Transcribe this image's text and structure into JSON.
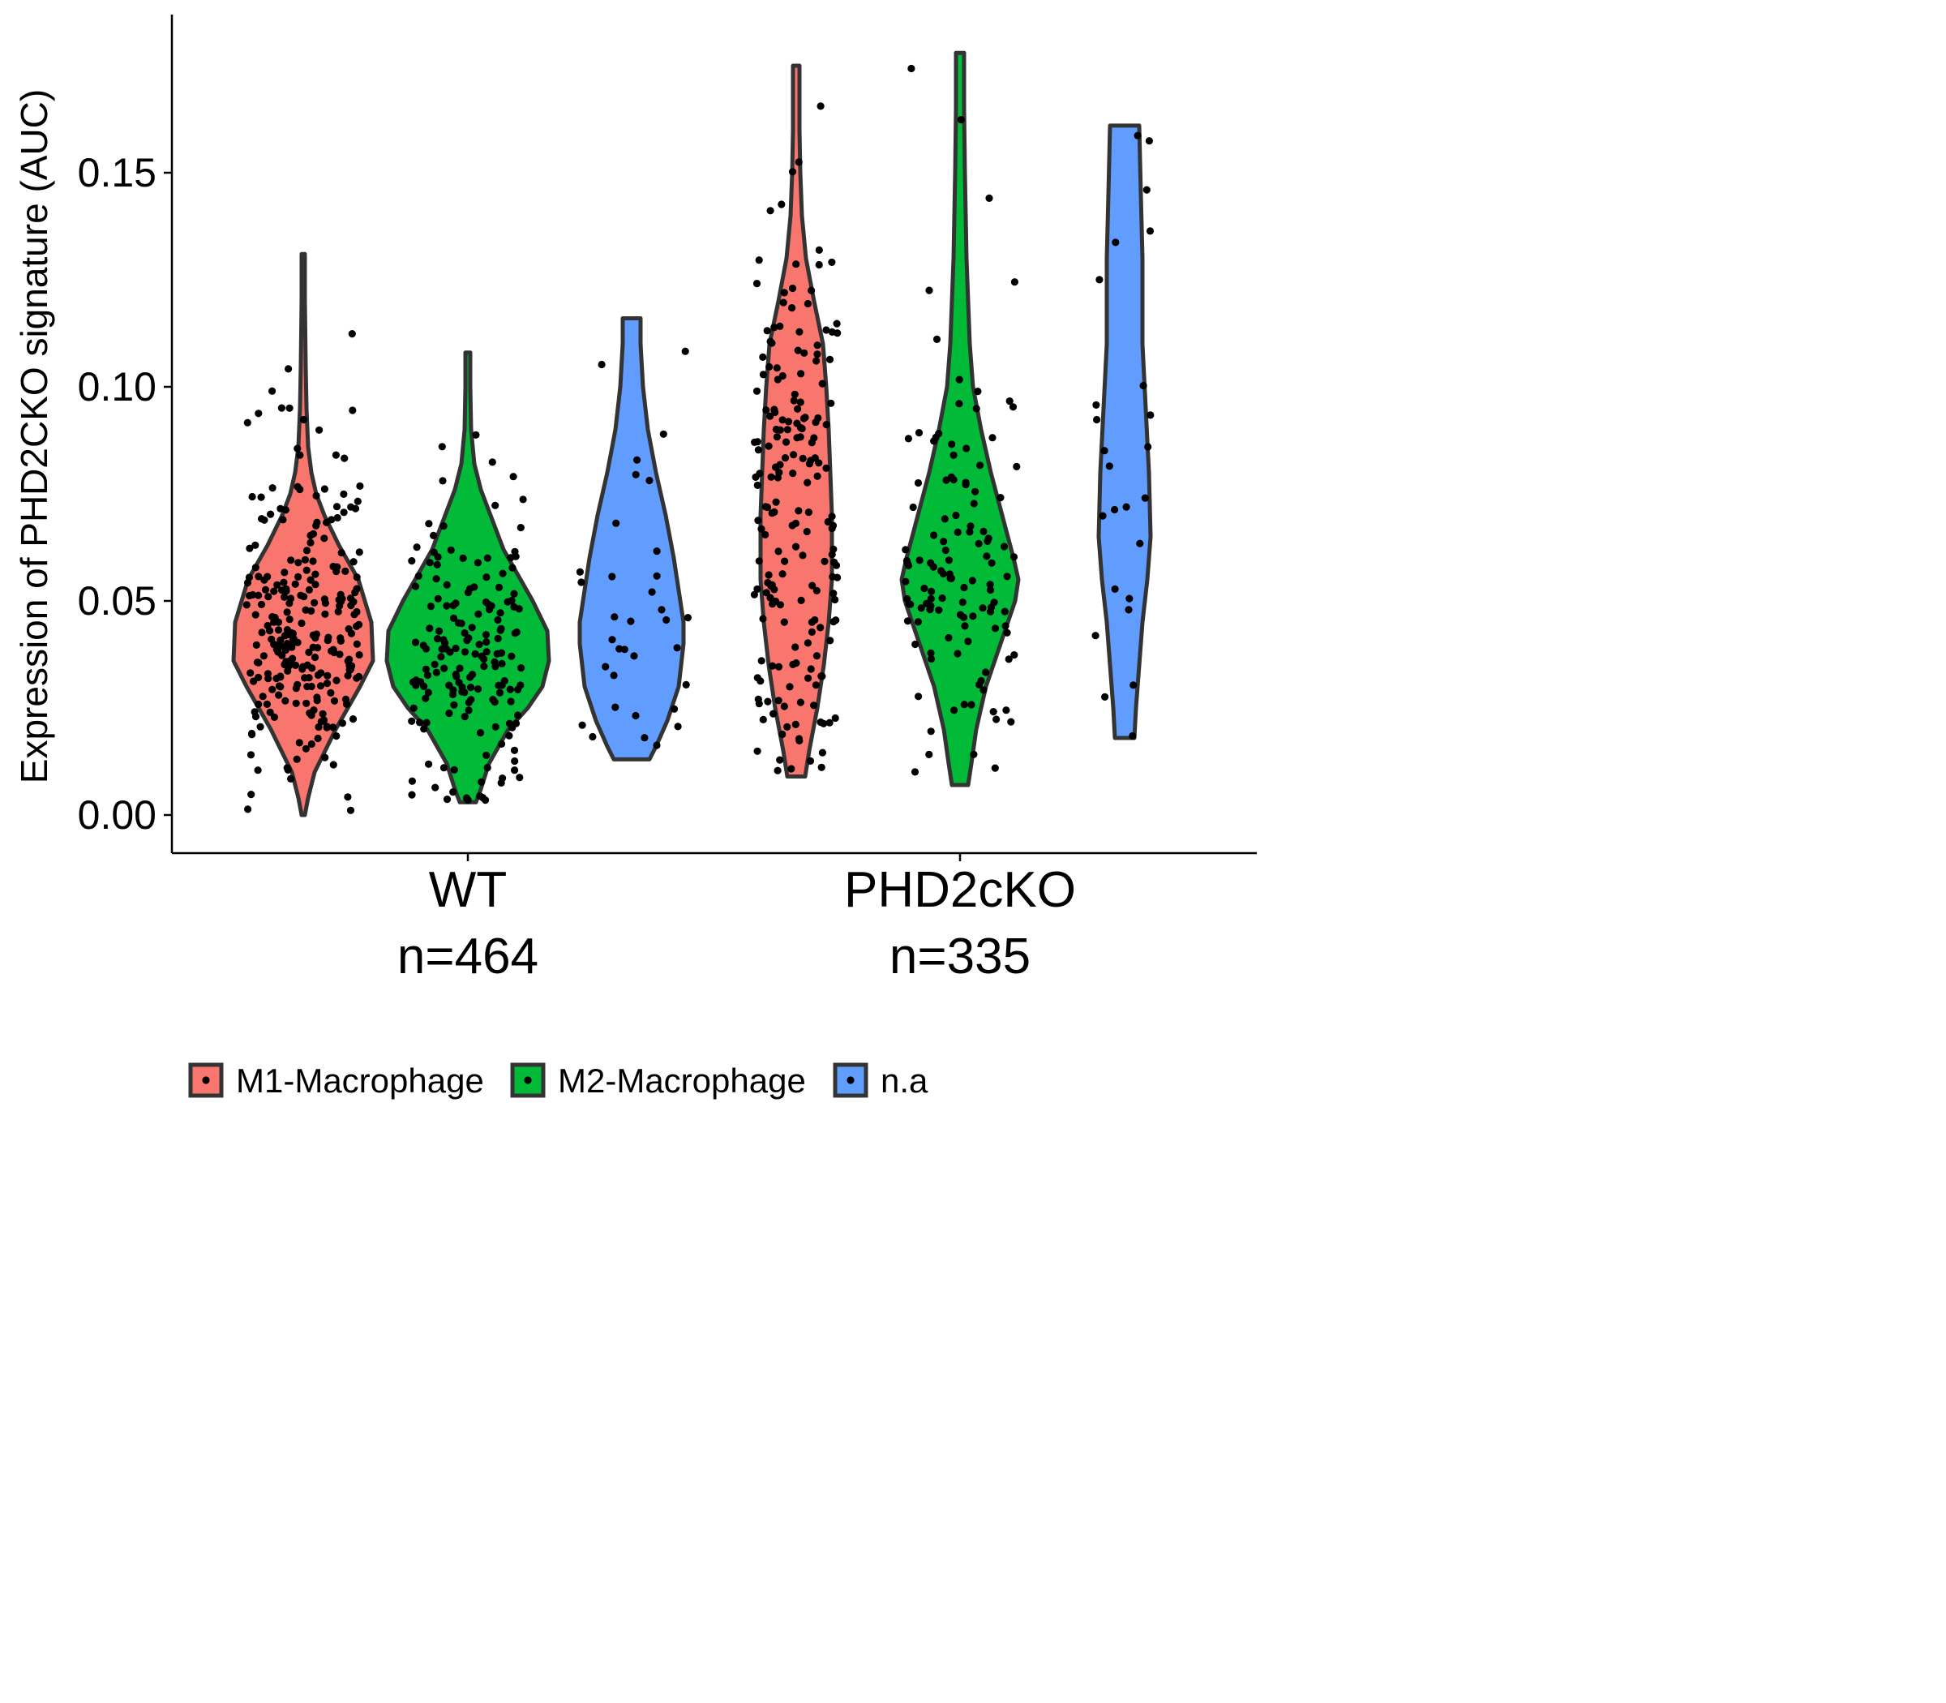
{
  "chart_data": {
    "type": "violin",
    "title": "",
    "ylabel": "Expression of PHD2CKO signature (AUC)",
    "xlabel": "",
    "ylim": [
      -0.0085,
      0.1855
    ],
    "y_ticks": [
      "0.00",
      "0.05",
      "0.10",
      "0.15"
    ],
    "grid": false,
    "legend_position": "bottom",
    "categories": [
      {
        "label": "WT",
        "sublabel": "n=464"
      },
      {
        "label": "PHD2cKO",
        "sublabel": "n=335"
      }
    ],
    "series": [
      {
        "name": "M1-Macrophage",
        "color": "#F8766D"
      },
      {
        "name": "M2-Macrophage",
        "color": "#00BA38"
      },
      {
        "name": "n.a",
        "color": "#619CFF"
      }
    ],
    "violins": [
      {
        "category": "WT",
        "series": "M1-Macrophage",
        "min": 0.0,
        "max": 0.131,
        "median": 0.038,
        "n_points": 260
      },
      {
        "category": "WT",
        "series": "M2-Macrophage",
        "min": 0.003,
        "max": 0.108,
        "median": 0.04,
        "n_points": 170
      },
      {
        "category": "WT",
        "series": "n.a",
        "min": 0.013,
        "max": 0.116,
        "median": 0.045,
        "n_points": 34
      },
      {
        "category": "PHD2cKO",
        "series": "M1-Macrophage",
        "min": 0.009,
        "max": 0.175,
        "median": 0.07,
        "n_points": 190
      },
      {
        "category": "PHD2cKO",
        "series": "M2-Macrophage",
        "min": 0.007,
        "max": 0.178,
        "median": 0.057,
        "n_points": 120
      },
      {
        "category": "PHD2cKO",
        "series": "n.a",
        "min": 0.018,
        "max": 0.161,
        "median": 0.08,
        "n_points": 25
      }
    ]
  }
}
